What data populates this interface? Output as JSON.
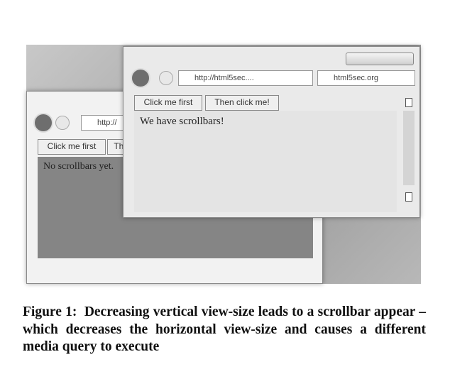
{
  "back_window": {
    "address": "http://",
    "buttons": [
      "Click me first",
      "Then click me!"
    ],
    "content": "No scrollbars yet."
  },
  "front_window": {
    "address": "http://html5sec....",
    "tab": "html5sec.org",
    "buttons": [
      "Click me first",
      "Then click me!"
    ],
    "content": "We have scrollbars!"
  },
  "caption": {
    "label": "Figure 1:",
    "text": "Decreasing vertical view-size leads to a scrollbar appear – which decreases the horizontal view-size and causes a different media query to execute"
  }
}
